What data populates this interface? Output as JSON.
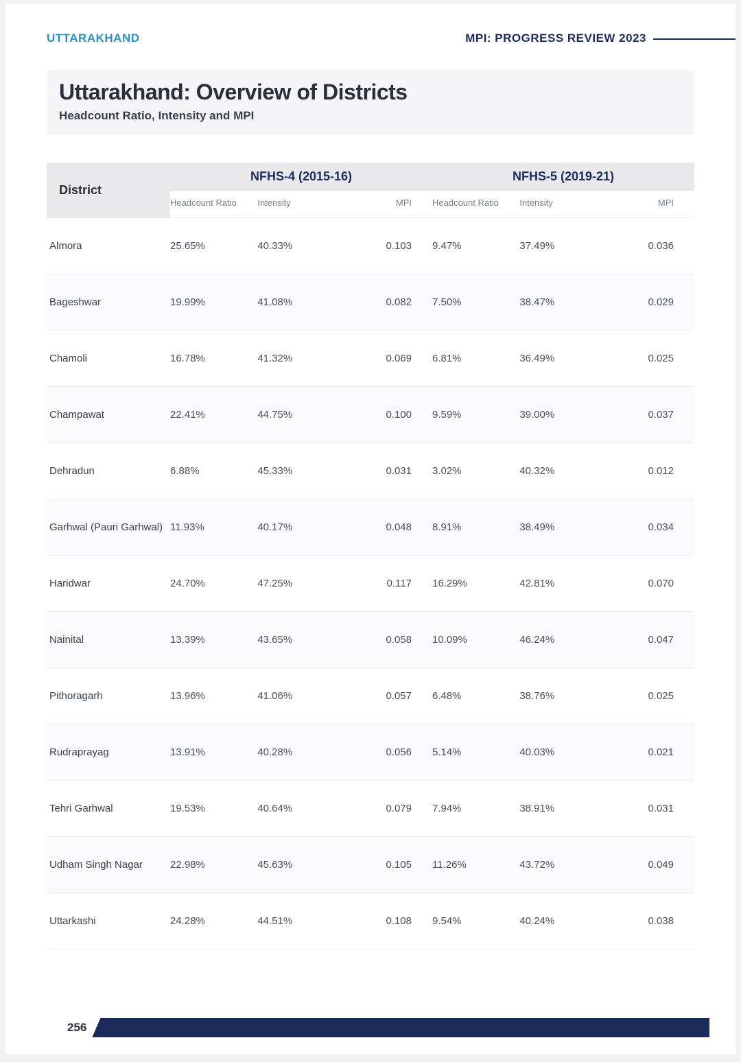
{
  "header": {
    "state": "UTTARAKHAND",
    "report": "MPI: PROGRESS REVIEW 2023"
  },
  "title": {
    "main": "Uttarakhand: Overview of Districts",
    "sub": "Headcount Ratio, Intensity and MPI"
  },
  "table": {
    "district_label": "District",
    "group1": "NFHS-4 (2015-16)",
    "group2": "NFHS-5 (2019-21)",
    "sub_headers": [
      "Headcount Ratio",
      "Intensity",
      "MPI",
      "Headcount Ratio",
      "Intensity",
      "MPI"
    ],
    "rows": [
      {
        "name": "Almora",
        "v": [
          "25.65%",
          "40.33%",
          "0.103",
          "9.47%",
          "37.49%",
          "0.036"
        ]
      },
      {
        "name": "Bageshwar",
        "v": [
          "19.99%",
          "41.08%",
          "0.082",
          "7.50%",
          "38.47%",
          "0.029"
        ]
      },
      {
        "name": "Chamoli",
        "v": [
          "16.78%",
          "41.32%",
          "0.069",
          "6.81%",
          "36.49%",
          "0.025"
        ]
      },
      {
        "name": "Champawat",
        "v": [
          "22.41%",
          "44.75%",
          "0.100",
          "9.59%",
          "39.00%",
          "0.037"
        ]
      },
      {
        "name": "Dehradun",
        "v": [
          "6.88%",
          "45.33%",
          "0.031",
          "3.02%",
          "40.32%",
          "0.012"
        ]
      },
      {
        "name": "Garhwal (Pauri Garhwal)",
        "v": [
          "11.93%",
          "40.17%",
          "0.048",
          "8.91%",
          "38.49%",
          "0.034"
        ]
      },
      {
        "name": "Haridwar",
        "v": [
          "24.70%",
          "47.25%",
          "0.117",
          "16.29%",
          "42.81%",
          "0.070"
        ]
      },
      {
        "name": "Nainital",
        "v": [
          "13.39%",
          "43.65%",
          "0.058",
          "10.09%",
          "46.24%",
          "0.047"
        ]
      },
      {
        "name": "Pithoragarh",
        "v": [
          "13.96%",
          "41.06%",
          "0.057",
          "6.48%",
          "38.76%",
          "0.025"
        ]
      },
      {
        "name": "Rudraprayag",
        "v": [
          "13.91%",
          "40.28%",
          "0.056",
          "5.14%",
          "40.03%",
          "0.021"
        ]
      },
      {
        "name": "Tehri Garhwal",
        "v": [
          "19.53%",
          "40.64%",
          "0.079",
          "7.94%",
          "38.91%",
          "0.031"
        ]
      },
      {
        "name": "Udham Singh Nagar",
        "v": [
          "22.98%",
          "45.63%",
          "0.105",
          "11.26%",
          "43.72%",
          "0.049"
        ]
      },
      {
        "name": "Uttarkashi",
        "v": [
          "24.28%",
          "44.51%",
          "0.108",
          "9.54%",
          "40.24%",
          "0.038"
        ]
      }
    ]
  },
  "colors": {
    "accent_blue": "#2a8fc7",
    "navy": "#1a2b5c",
    "text_dark": "#2b2f3a",
    "text_body": "#4a4f5c",
    "header_bg": "#e9e9ec",
    "title_bg": "#f5f5f7",
    "row_alt": "#fafafc",
    "border": "#eceef3"
  },
  "page_number": "256"
}
